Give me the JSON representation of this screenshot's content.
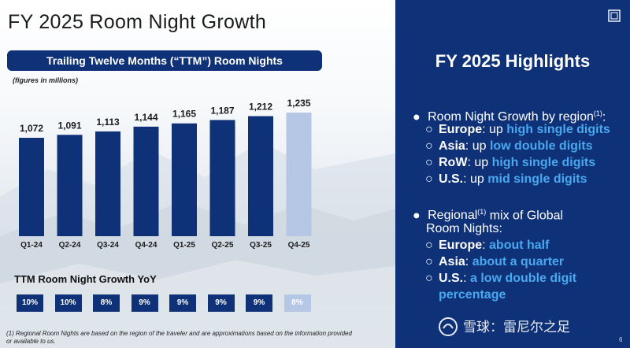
{
  "title": "FY 2025 Room Night Growth",
  "subtitle": "Trailing Twelve Months (“TTM”) Room Nights",
  "units_note": "(figures in millions)",
  "chart_data": {
    "type": "bar",
    "title": "Trailing Twelve Months (“TTM”) Room Nights",
    "ylabel": "figures in millions",
    "xlabel": "",
    "categories": [
      "Q1-24",
      "Q2-24",
      "Q3-24",
      "Q4-24",
      "Q1-25",
      "Q2-25",
      "Q3-25",
      "Q4-25"
    ],
    "values": [
      1072,
      1091,
      1113,
      1144,
      1165,
      1187,
      1212,
      1235
    ],
    "value_labels": [
      "1,072",
      "1,091",
      "1,113",
      "1,144",
      "1,165",
      "1,187",
      "1,212",
      "1,235"
    ],
    "highlighted_category": "Q4-25",
    "colors": {
      "bar": "#0e3178",
      "bar_highlight": "#b6c7e6"
    },
    "ylim": [
      0,
      1300
    ],
    "grid": false
  },
  "yoy": {
    "title": "TTM Room Night Growth YoY",
    "values": [
      "10%",
      "10%",
      "8%",
      "9%",
      "9%",
      "9%",
      "9%",
      "8%"
    ]
  },
  "footnote": "(1) Regional Room Nights are based on the region of the traveler and are approximations based on the information provided or available to us.",
  "highlights": {
    "title": "FY 2025 Highlights",
    "bullet1": {
      "label": "Room Night Growth by region",
      "sup": "(1)",
      "tail": ":"
    },
    "growth_items": [
      {
        "key": "Europe",
        "pre": ": up ",
        "value": "high single digits"
      },
      {
        "key": "Asia",
        "pre": ": up ",
        "value": "low double digits"
      },
      {
        "key": "RoW",
        "pre": ": up ",
        "value": "high single digits"
      },
      {
        "key": "U.S.",
        "pre": ": up ",
        "value": "mid single digits"
      }
    ],
    "bullet2": {
      "label_a": "Regional",
      "sup": "(1)",
      "label_b": " mix of Global",
      "label_c": "Room Nights:"
    },
    "mix_items": [
      {
        "key": "Europe",
        "pre": ": ",
        "value": "about half"
      },
      {
        "key": "Asia",
        "pre": ": ",
        "value": "about a quarter"
      },
      {
        "key": "U.S.",
        "pre": ": ",
        "value": "a low double digit",
        "value2": "percentage"
      }
    ]
  },
  "page_number": "6",
  "watermark": "雪球：雷尼尔之足",
  "icons": {
    "corner": "square-logo-icon",
    "watermark": "snowball-logo-icon"
  },
  "accent_color": "#49a8ee"
}
